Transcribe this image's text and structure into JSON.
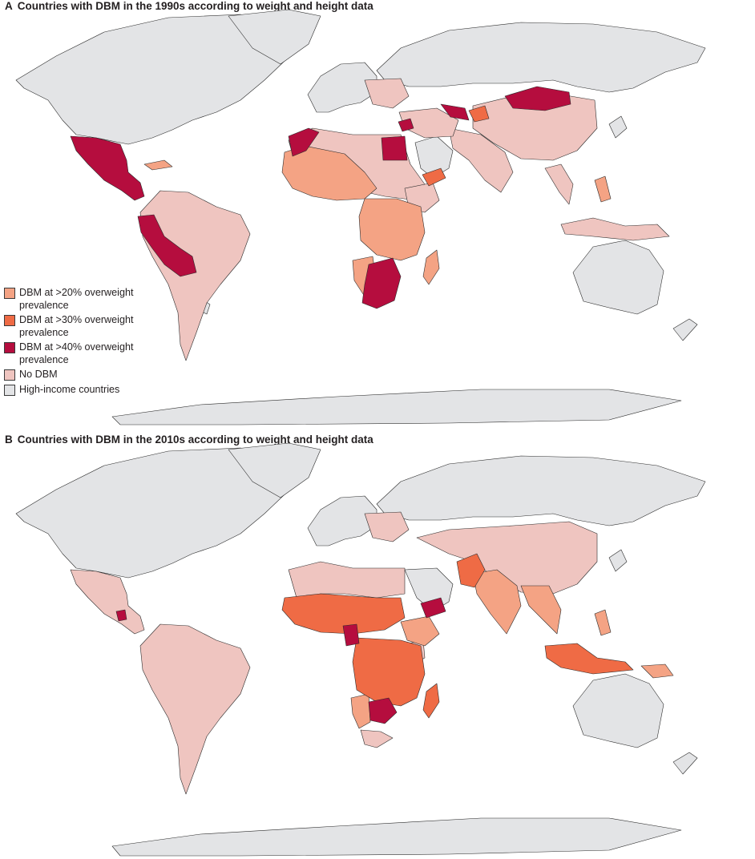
{
  "colors": {
    "dbm_20": "#f4a384",
    "dbm_30": "#ef6b45",
    "dbm_40": "#b50d3e",
    "no_dbm": "#efc5c0",
    "high_income": "#e3e4e6",
    "border": "#2b2b2b"
  },
  "legend": [
    {
      "label": "DBM at >20% overweight prevalence",
      "category": "dbm_20"
    },
    {
      "label": "DBM at >30% overweight prevalence",
      "category": "dbm_30"
    },
    {
      "label": "DBM at >40% overweight prevalence",
      "category": "dbm_40"
    },
    {
      "label": "No DBM",
      "category": "no_dbm"
    },
    {
      "label": "High-income countries",
      "category": "high_income"
    }
  ],
  "panels": [
    {
      "letter": "A",
      "title": "Countries with DBM in the 1990s according to weight and height data",
      "classification": {
        "Mexico": "dbm_40",
        "Guatemala": "dbm_40",
        "Honduras": "dbm_40",
        "Nicaragua": "dbm_40",
        "Peru": "dbm_40",
        "Bolivia": "dbm_40",
        "Ecuador": "dbm_40",
        "Morocco": "dbm_40",
        "Egypt": "dbm_40",
        "Syria": "dbm_40",
        "Uzbekistan": "dbm_40",
        "Mongolia": "dbm_40",
        "South Africa": "dbm_40",
        "Zimbabwe": "dbm_40",
        "Botswana": "dbm_40",
        "Lesotho": "dbm_30",
        "Kyrgyzstan": "dbm_30",
        "Tajikistan": "dbm_30",
        "Yemen": "dbm_30",
        "Algeria": "dbm_30",
        "Western Sahara": "dbm_20",
        "Mauritania": "dbm_20",
        "Mali": "dbm_20",
        "Senegal": "dbm_20",
        "Guinea": "dbm_20",
        "Sierra Leone": "dbm_20",
        "Liberia": "dbm_20",
        "Cote d'Ivoire": "dbm_20",
        "Ghana": "dbm_20",
        "Togo": "dbm_20",
        "Benin": "dbm_20",
        "Burkina Faso": "dbm_20",
        "Cameroon": "dbm_20",
        "Central African Republic": "dbm_20",
        "Gabon": "dbm_20",
        "Congo": "dbm_20",
        "DR Congo": "dbm_20",
        "Angola": "dbm_20",
        "Zambia": "dbm_20",
        "Malawi": "dbm_20",
        "Mozambique": "dbm_20",
        "Namibia": "dbm_20",
        "Tanzania": "dbm_20",
        "Madagascar": "dbm_20",
        "Cuba": "dbm_20",
        "Philippines": "dbm_20",
        "Kazakhstan": "dbm_20"
      }
    },
    {
      "letter": "B",
      "title": "Countries with DBM in the 2010s according to weight and height data",
      "classification": {
        "Guatemala": "dbm_40",
        "Cameroon": "dbm_40",
        "Yemen": "dbm_40",
        "Botswana": "dbm_40",
        "Zimbabwe": "dbm_40",
        "Mauritania": "dbm_30",
        "Mali": "dbm_30",
        "Niger": "dbm_30",
        "Chad": "dbm_30",
        "Sudan": "dbm_30",
        "Senegal": "dbm_30",
        "Guinea": "dbm_30",
        "Sierra Leone": "dbm_30",
        "Liberia": "dbm_30",
        "Cote d'Ivoire": "dbm_30",
        "Burkina Faso": "dbm_30",
        "Nigeria": "dbm_30",
        "Central African Republic": "dbm_30",
        "Congo": "dbm_30",
        "DR Congo": "dbm_30",
        "Angola": "dbm_30",
        "Zambia": "dbm_30",
        "Tanzania": "dbm_30",
        "Malawi": "dbm_30",
        "Mozambique": "dbm_30",
        "Madagascar": "dbm_30",
        "Pakistan": "dbm_30",
        "Indonesia": "dbm_30",
        "India": "dbm_20",
        "Nepal": "dbm_20",
        "Bangladesh": "dbm_20",
        "Myanmar": "dbm_20",
        "Laos": "dbm_20",
        "Cambodia": "dbm_20",
        "Philippines": "dbm_20",
        "Papua New Guinea": "dbm_20",
        "Ethiopia": "dbm_20",
        "Namibia": "dbm_20",
        "Lesotho": "dbm_40"
      }
    }
  ]
}
